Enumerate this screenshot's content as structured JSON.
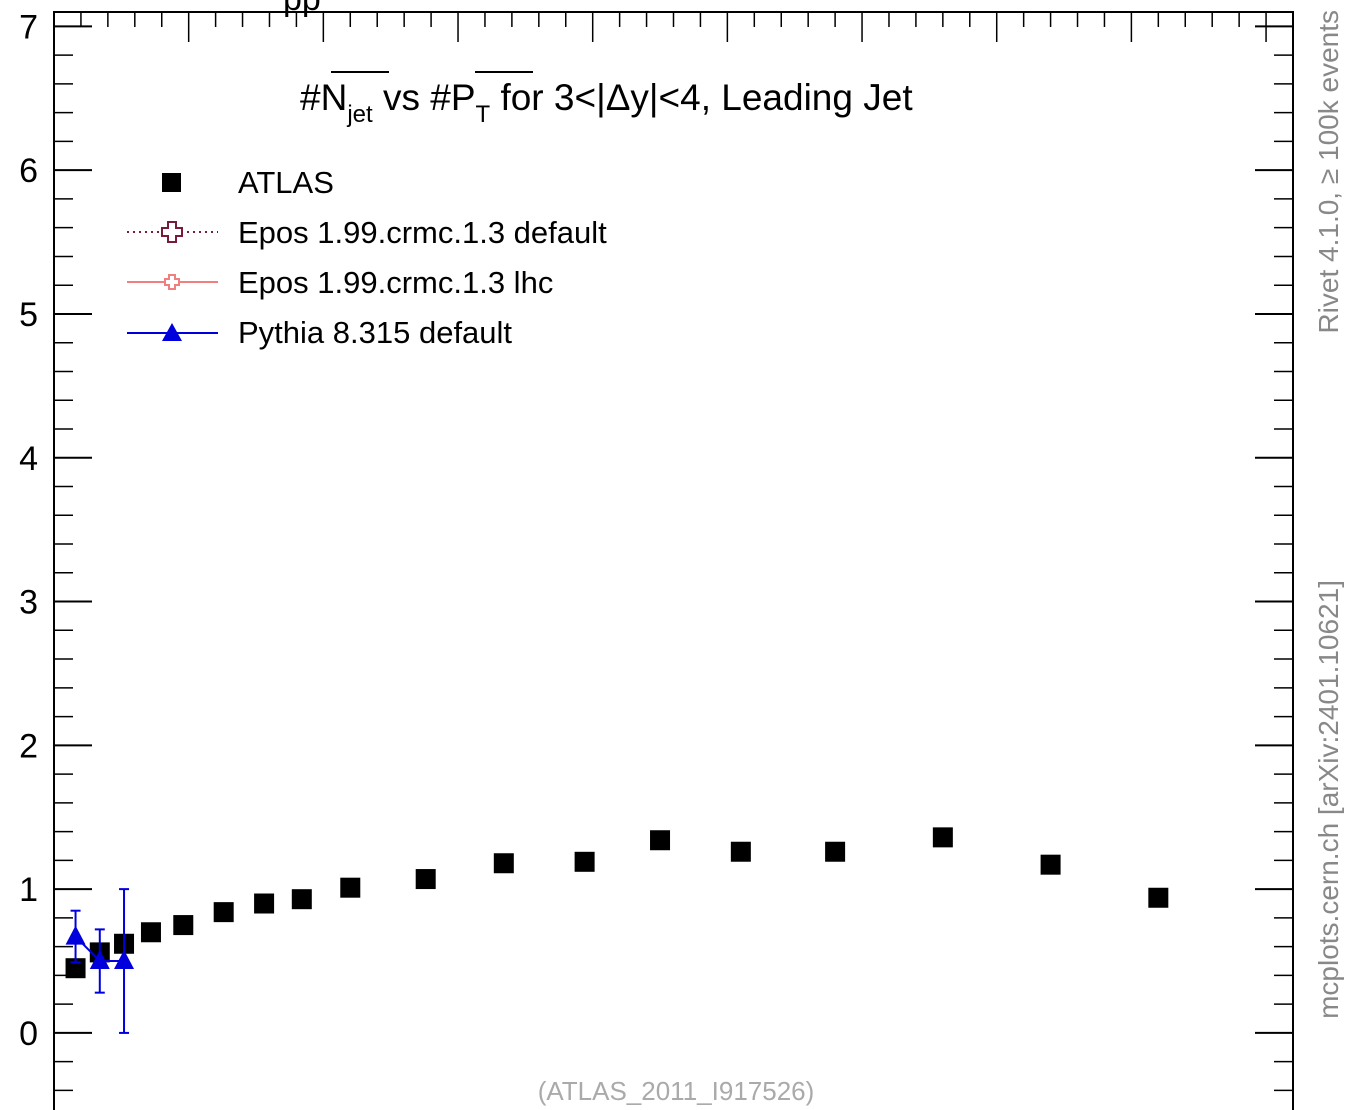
{
  "chart_data": {
    "type": "scatter",
    "title": {
      "prefix_n": "#",
      "n_symbol": "N",
      "n_sub": "jet",
      "middle": " vs #",
      "p_symbol": "P",
      "p_sub": "T",
      "suffix": " for 3<|Δy|<4, Leading Jet"
    },
    "top_label": "pp",
    "watermark": "(ATLAS_2011_I917526)",
    "side_label_top": "Rivet 4.1.0, ≥ 100k events",
    "side_label_bottom": "mcplots.cern.ch [arXiv:2401.10621]",
    "ylim": [
      -0.55,
      7.1
    ],
    "y_ticks": [
      0,
      1,
      2,
      3,
      4,
      5,
      6,
      7
    ],
    "legend_position": "top-left",
    "series": [
      {
        "name": "ATLAS",
        "marker": "square",
        "color": "#000000",
        "x": [
          0.8,
          1.7,
          2.6,
          3.6,
          4.8,
          6.3,
          7.8,
          9.2,
          11.0,
          13.8,
          16.7,
          19.7,
          22.5,
          25.5,
          29.0,
          33.0,
          37.0,
          41.0
        ],
        "y": [
          0.45,
          0.56,
          0.62,
          0.7,
          0.75,
          0.84,
          0.9,
          0.93,
          1.01,
          1.07,
          1.18,
          1.19,
          1.34,
          1.26,
          1.26,
          1.36,
          1.17,
          0.94
        ]
      },
      {
        "name": "Epos 1.99.crmc.1.3 default",
        "marker": "open-cross",
        "line": "dotted",
        "color": "#7a1a3a",
        "x": [],
        "y": []
      },
      {
        "name": "Epos 1.99.crmc.1.3 lhc",
        "marker": "open-cross",
        "line": "solid",
        "color": "#f08080",
        "x": [],
        "y": []
      },
      {
        "name": "Pythia 8.315 default",
        "marker": "triangle",
        "line": "solid",
        "color": "#0000dd",
        "x": [
          0.8,
          1.7,
          2.6
        ],
        "y": [
          0.67,
          0.5,
          0.5
        ],
        "err_lo": [
          0.18,
          0.22,
          0.5
        ],
        "err_hi": [
          0.18,
          0.22,
          0.5
        ]
      }
    ]
  }
}
